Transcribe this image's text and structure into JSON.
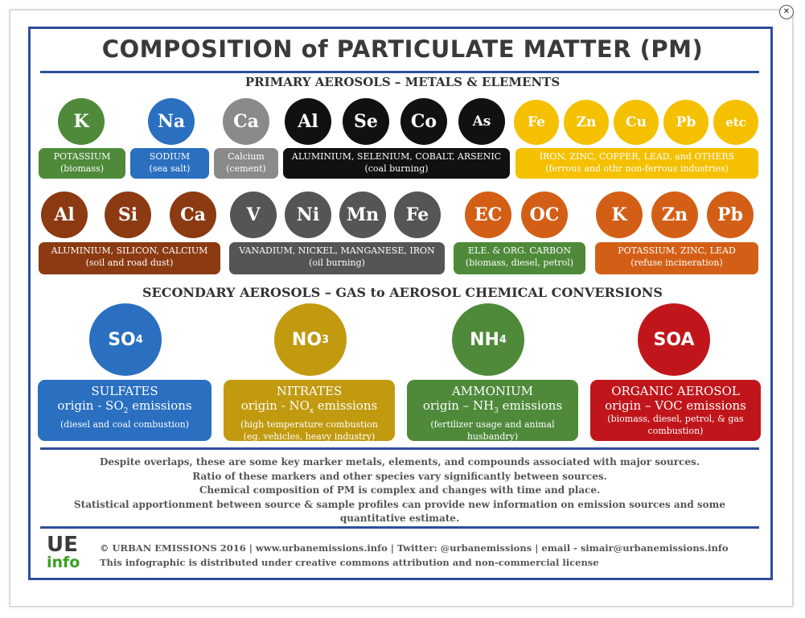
{
  "title": "COMPOSITION of PARTICULATE MATTER (PM)",
  "primary_heading": "PRIMARY AEROSOLS – METALS & ELEMENTS",
  "secondary_heading": "SECONDARY AEROSOLS – GAS to AEROSOL CHEMICAL CONVERSIONS",
  "colors": {
    "frame": "#2e4d9a",
    "green": "#4e8a3a",
    "blue": "#2a6fc0",
    "gray": "#8a8a8a",
    "black": "#111111",
    "yellow": "#f5c000",
    "brown": "#8b3a12",
    "darkgray": "#555555",
    "orange": "#d35f16",
    "olive": "#c29a10",
    "red": "#c0161b"
  },
  "row1": {
    "circles": [
      "K",
      "Na",
      "Ca",
      "Al",
      "Se",
      "Co",
      "As",
      "Fe",
      "Zn",
      "Cu",
      "Pb",
      "etc"
    ],
    "boxes": [
      {
        "l1": "POTASSIUM",
        "l2": "(biomass)"
      },
      {
        "l1": "SODIUM",
        "l2": "(sea salt)"
      },
      {
        "l1": "Calcium",
        "l2": "(cement)"
      },
      {
        "l1": "ALUMINIUM, SELENIUM, COBALT, ARSENIC",
        "l2": "(coal burning)"
      },
      {
        "l1": "IRON, ZINC, COPPER, LEAD, and OTHERS",
        "l2": "(ferrous and othr non-ferrous industries)"
      }
    ]
  },
  "row2": {
    "circles": [
      "Al",
      "Si",
      "Ca",
      "V",
      "Ni",
      "Mn",
      "Fe",
      "EC",
      "OC",
      "K",
      "Zn",
      "Pb"
    ],
    "boxes": [
      {
        "l1": "ALUMINIUM, SILICON, CALCIUM",
        "l2": "(soil and road dust)"
      },
      {
        "l1": "VANADIUM, NICKEL, MANGANESE, IRON",
        "l2": "(oil burning)"
      },
      {
        "l1": "ELE. & ORG. CARBON",
        "l2": "(biomass, diesel, petrol)"
      },
      {
        "l1": "POTASSIUM, ZINC, LEAD",
        "l2": "(refuse incineration)"
      }
    ]
  },
  "secondary": [
    {
      "sym": "SO",
      "sub": "4",
      "name": "SULFATES",
      "o1": "origin - SO",
      "osub": "2",
      "o2": " emissions",
      "d1": "(diesel and coal combustion)",
      "d2": ""
    },
    {
      "sym": "NO",
      "sub": "3",
      "name": "NITRATES",
      "o1": "origin - NO",
      "osub": "x",
      "o2": " emissions",
      "d1": "(high temperature combustion",
      "d2": "(eg. vehicles, heavy industry)"
    },
    {
      "sym": "NH",
      "sub": "4",
      "name": "AMMONIUM",
      "o1": "origin – NH",
      "osub": "3",
      "o2": " emissions",
      "d1": "(fertilizer usage and animal",
      "d2": "husbandry)"
    },
    {
      "sym": "SOA",
      "sub": "",
      "name": "ORGANIC AEROSOL",
      "o1": "origin – VOC emissions",
      "osub": "",
      "o2": "",
      "d1": "(biomass, diesel, petrol, & gas",
      "d2": "combustion)"
    }
  ],
  "notes": [
    "Despite overlaps, these are some key marker metals, elements, and compounds associated with major sources.",
    "Ratio of these markers and other species vary significantly between sources.",
    "Chemical composition of PM is complex and changes with time and place.",
    "Statistical apportionment between source & sample profiles can provide new information on emission sources and some",
    "quantitative estimate."
  ],
  "logo": {
    "ue": "UE",
    "info": "info"
  },
  "footer": {
    "line1": "© URBAN EMISSIONS 2016 | www.urbanemissions.info | Twitter: @urbanemissions | email - simair@urbanemissions.info",
    "line2": "This infographic is distributed under creative commons attribution and non-commercial license"
  }
}
